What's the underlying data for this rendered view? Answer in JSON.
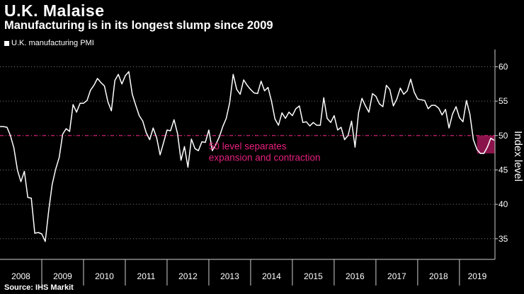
{
  "header": {
    "title": "U.K. Malaise",
    "subtitle": "Manufacturing is in its longest slump since 2009"
  },
  "legend": {
    "label": "U.K. manufacturing PMI"
  },
  "footer": {
    "source": "Source: IHS Markit"
  },
  "colors": {
    "background": "#000000",
    "line": "#ffffff",
    "accent": "#e6207d",
    "grid": "#7a7a7a"
  },
  "chart_data": {
    "type": "line",
    "title": "U.K. Malaise",
    "subtitle": "Manufacturing is in its longest slump since 2009",
    "xlabel": "",
    "ylabel": "Index level",
    "ylim": [
      32,
      62
    ],
    "yticks": [
      35,
      40,
      45,
      50,
      55,
      60
    ],
    "xlim": [
      2008.0,
      2019.85
    ],
    "xticks": [
      "2008",
      "2009",
      "2010",
      "2011",
      "2012",
      "2013",
      "2014",
      "2015",
      "2016",
      "2017",
      "2018",
      "2019"
    ],
    "grid": "horizontal dotted",
    "legend_position": "top-left",
    "reference_line": {
      "y": 50,
      "style": "dashed",
      "color": "#e6207d"
    },
    "annotation": {
      "lines": [
        "50 level separates",
        "expansion and contraction"
      ]
    },
    "highlight": {
      "x_start": 2019.42,
      "x_end": 2019.84,
      "y_min": 47.4,
      "y_max": 50.0
    },
    "series": [
      {
        "name": "U.K. manufacturing PMI",
        "x": [
          2008.0,
          2008.083,
          2008.167,
          2008.25,
          2008.333,
          2008.417,
          2008.5,
          2008.583,
          2008.667,
          2008.75,
          2008.833,
          2008.917,
          2009.0,
          2009.083,
          2009.167,
          2009.25,
          2009.333,
          2009.417,
          2009.5,
          2009.583,
          2009.667,
          2009.75,
          2009.833,
          2009.917,
          2010.0,
          2010.083,
          2010.167,
          2010.25,
          2010.333,
          2010.417,
          2010.5,
          2010.583,
          2010.667,
          2010.75,
          2010.833,
          2010.917,
          2011.0,
          2011.083,
          2011.167,
          2011.25,
          2011.333,
          2011.417,
          2011.5,
          2011.583,
          2011.667,
          2011.75,
          2011.833,
          2011.917,
          2012.0,
          2012.083,
          2012.167,
          2012.25,
          2012.333,
          2012.417,
          2012.5,
          2012.583,
          2012.667,
          2012.75,
          2012.833,
          2012.917,
          2013.0,
          2013.083,
          2013.167,
          2013.25,
          2013.333,
          2013.417,
          2013.5,
          2013.583,
          2013.667,
          2013.75,
          2013.833,
          2013.917,
          2014.0,
          2014.083,
          2014.167,
          2014.25,
          2014.333,
          2014.417,
          2014.5,
          2014.583,
          2014.667,
          2014.75,
          2014.833,
          2014.917,
          2015.0,
          2015.083,
          2015.167,
          2015.25,
          2015.333,
          2015.417,
          2015.5,
          2015.583,
          2015.667,
          2015.75,
          2015.833,
          2015.917,
          2016.0,
          2016.083,
          2016.167,
          2016.25,
          2016.333,
          2016.417,
          2016.5,
          2016.583,
          2016.667,
          2016.75,
          2016.833,
          2016.917,
          2017.0,
          2017.083,
          2017.167,
          2017.25,
          2017.333,
          2017.417,
          2017.5,
          2017.583,
          2017.667,
          2017.75,
          2017.833,
          2017.917,
          2018.0,
          2018.083,
          2018.167,
          2018.25,
          2018.333,
          2018.417,
          2018.5,
          2018.583,
          2018.667,
          2018.75,
          2018.833,
          2018.917,
          2019.0,
          2019.083,
          2019.167,
          2019.25,
          2019.333,
          2019.417,
          2019.5,
          2019.583,
          2019.667,
          2019.75,
          2019.833
        ],
        "values": [
          51.3,
          51.3,
          51.2,
          50.0,
          48.2,
          45.0,
          43.3,
          44.8,
          41.0,
          40.9,
          35.8,
          35.9,
          35.7,
          34.6,
          39.1,
          42.9,
          45.1,
          46.8,
          50.2,
          51.0,
          50.6,
          54.5,
          53.4,
          54.7,
          54.7,
          55.1,
          56.6,
          57.3,
          58.3,
          57.7,
          57.2,
          54.9,
          53.6,
          58.0,
          58.9,
          57.5,
          58.7,
          59.3,
          56.0,
          54.4,
          52.9,
          52.1,
          50.4,
          49.4,
          51.1,
          49.7,
          47.2,
          49.0,
          50.8,
          50.7,
          52.3,
          50.3,
          46.4,
          48.4,
          45.4,
          49.5,
          48.1,
          47.8,
          49.1,
          49.0,
          50.8,
          47.8,
          48.7,
          49.8,
          51.3,
          52.5,
          54.8,
          58.9,
          56.7,
          56.0,
          58.1,
          57.3,
          56.7,
          56.2,
          56.1,
          57.9,
          56.5,
          57.0,
          55.0,
          52.4,
          51.5,
          53.3,
          52.5,
          53.4,
          52.9,
          53.9,
          54.3,
          51.9,
          52.0,
          51.4,
          51.9,
          51.5,
          51.5,
          55.5,
          52.5,
          51.9,
          52.9,
          50.8,
          51.2,
          49.4,
          50.0,
          52.1,
          48.3,
          53.3,
          55.4,
          54.3,
          53.4,
          56.1,
          55.7,
          54.6,
          54.2,
          57.3,
          56.7,
          54.3,
          55.3,
          56.9,
          56.0,
          56.5,
          58.2,
          56.3,
          55.3,
          55.2,
          55.1,
          53.9,
          54.4,
          54.4,
          54.0,
          53.0,
          53.8,
          51.1,
          53.1,
          54.2,
          52.6,
          52.0,
          55.1,
          53.1,
          49.4,
          48.0,
          47.4,
          47.4,
          48.3,
          49.6,
          49.3
        ]
      }
    ]
  }
}
